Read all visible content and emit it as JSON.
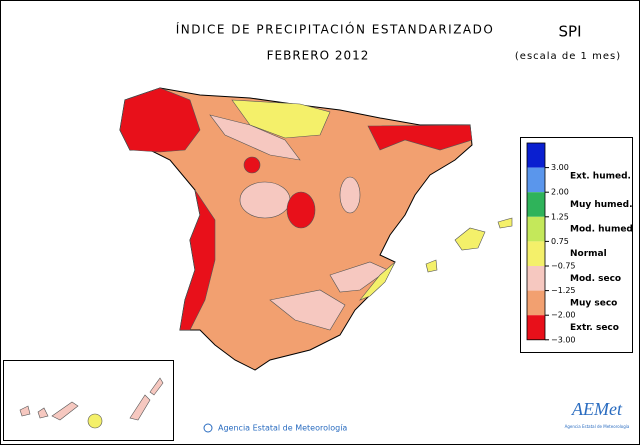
{
  "header": {
    "title": "ÍNDICE DE PRECIPITACIÓN ESTANDARIZADO",
    "subtitle": "FEBRERO 2012",
    "index": "SPI",
    "scale": "(escala de 1 mes)"
  },
  "legend": {
    "colors": [
      "#0a1fd0",
      "#5a96ec",
      "#2fb35a",
      "#c4e85a",
      "#f4f06a",
      "#f6c8c0",
      "#f2a070",
      "#e8101a"
    ],
    "ticks": [
      {
        "value": 3,
        "label": "3.00"
      },
      {
        "value": 2,
        "label": "2.00"
      },
      {
        "value": 1.25,
        "label": "1.25"
      },
      {
        "value": 0.75,
        "label": "0.75"
      },
      {
        "value": -0.75,
        "label": "−0.75"
      },
      {
        "value": -1.25,
        "label": "−1.25"
      },
      {
        "value": -2,
        "label": "−2.00"
      },
      {
        "value": -3,
        "label": "−3.00"
      }
    ],
    "classes": [
      "Ext. humed.",
      "Muy humed.",
      "Mod. humed",
      "Normal",
      "Mod. seco",
      "Muy seco",
      "Extr. seco"
    ]
  },
  "footer": {
    "credit": "Agencia Estatal de Meteorología",
    "logo": "AEMet",
    "logo_caption": "Agencia Estatal de Meteorología"
  }
}
